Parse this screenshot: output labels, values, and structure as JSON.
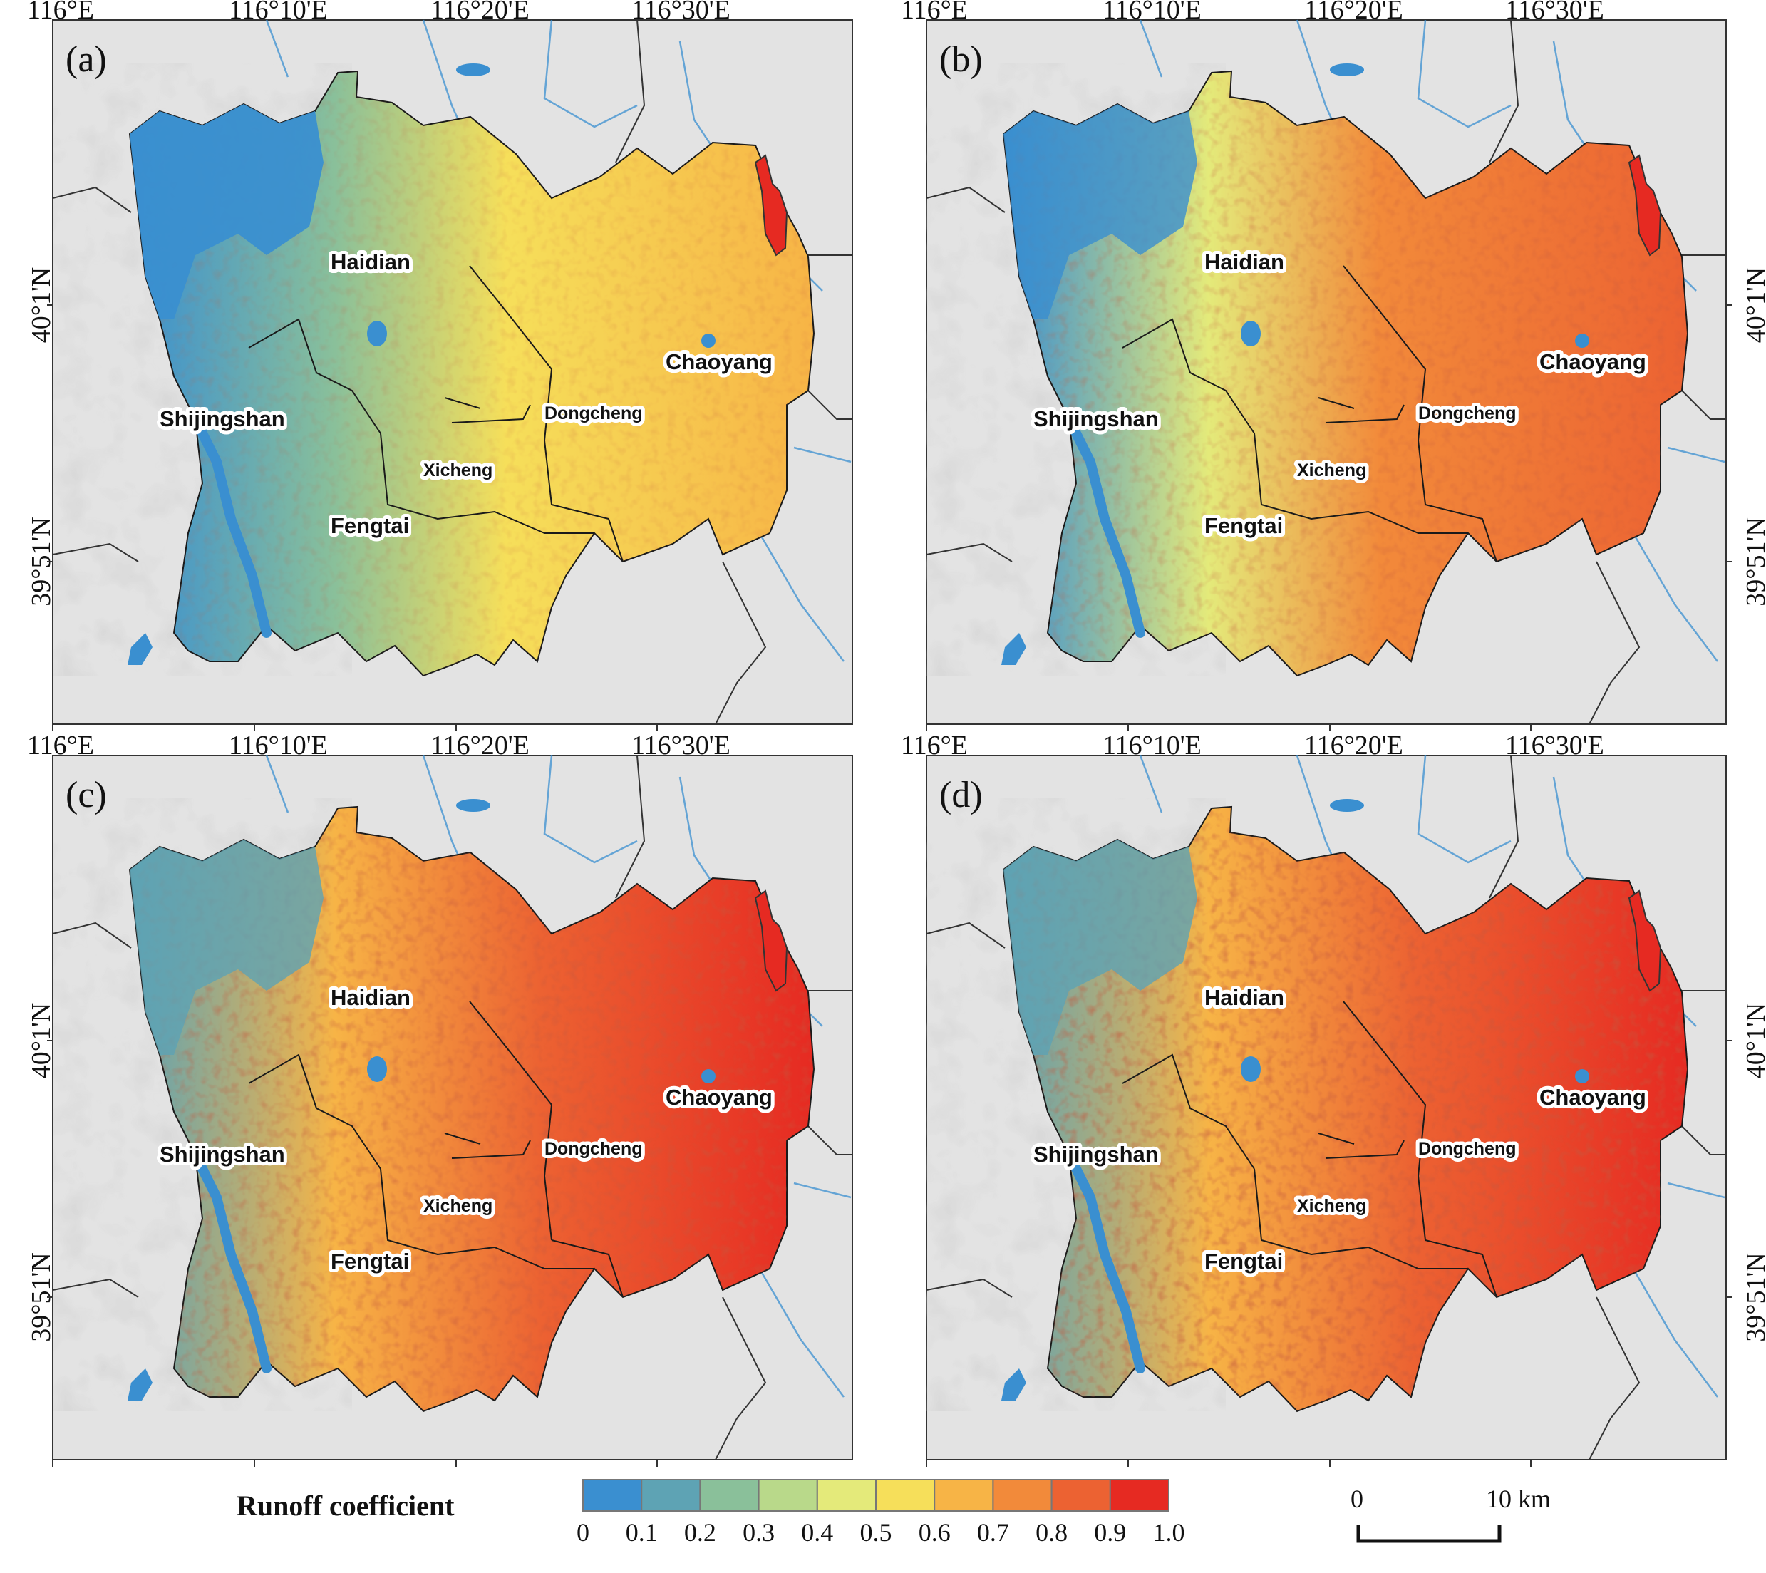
{
  "panels": [
    {
      "letter": "(a)",
      "level": 0
    },
    {
      "letter": "(b)",
      "level": 1
    },
    {
      "letter": "(c)",
      "level": 2
    },
    {
      "letter": "(d)",
      "level": 3
    }
  ],
  "longitude_labels": [
    "116°E",
    "116°10'E",
    "116°20'E",
    "116°30'E"
  ],
  "latitude_labels": [
    "40°1'N",
    "39°51'N"
  ],
  "districts": {
    "haidian": "Haidian",
    "chaoyang": "Chaoyang",
    "shijingshan": "Shijingshan",
    "dongcheng": "Dongcheng",
    "xicheng": "Xicheng",
    "fengtai": "Fengtai"
  },
  "legend": {
    "title": "Runoff coefficient",
    "ticks": [
      "0",
      "0.1",
      "0.2",
      "0.3",
      "0.4",
      "0.5",
      "0.6",
      "0.7",
      "0.8",
      "0.9",
      "1.0"
    ],
    "colors": [
      "#3a8fd0",
      "#5ea3b4",
      "#8ac09a",
      "#b9d98a",
      "#e4ea7a",
      "#f6df5a",
      "#f7b446",
      "#f28a3a",
      "#ec6232",
      "#e62a22"
    ]
  },
  "scale_bar": {
    "start": "0",
    "end": "10 km"
  },
  "colors": {
    "background": "#e3e3e3",
    "river": "#3a8fd0",
    "boundary": "#1a1a1a"
  }
}
